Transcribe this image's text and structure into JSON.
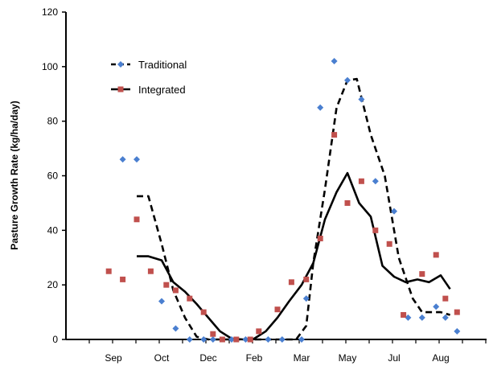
{
  "chart_data": {
    "type": "scatter",
    "title": "",
    "xlabel": "",
    "ylabel": "Pasture Growth Rate (kg/ha/day)",
    "ylim": [
      0,
      120
    ],
    "yticks": [
      0,
      20,
      40,
      60,
      80,
      100,
      120
    ],
    "xlim": [
      0,
      12
    ],
    "xtick_labels": [
      {
        "label": "Sep",
        "x": 1
      },
      {
        "label": "Oct",
        "x": 2
      },
      {
        "label": "Dec",
        "x": 3
      },
      {
        "label": "Feb",
        "x": 4
      },
      {
        "label": "Mar",
        "x": 5
      },
      {
        "label": "May",
        "x": 6
      },
      {
        "label": "Jul",
        "x": 7
      },
      {
        "label": "Aug",
        "x": 8
      }
    ],
    "grid": false,
    "legend_position": "top-left",
    "series": [
      {
        "name": "Traditional",
        "marker": "diamond",
        "color": "#4a7fd0",
        "points": [
          [
            1.2,
            66
          ],
          [
            1.5,
            66
          ],
          [
            2.0,
            14
          ],
          [
            2.3,
            4
          ],
          [
            2.6,
            0
          ],
          [
            2.9,
            0
          ],
          [
            3.1,
            0
          ],
          [
            3.5,
            0
          ],
          [
            3.8,
            0
          ],
          [
            4.3,
            0
          ],
          [
            4.6,
            0
          ],
          [
            5.0,
            0
          ],
          [
            5.1,
            15
          ],
          [
            5.4,
            85
          ],
          [
            5.7,
            102
          ],
          [
            6.0,
            95
          ],
          [
            6.3,
            88
          ],
          [
            6.6,
            58
          ],
          [
            7.0,
            47
          ],
          [
            7.3,
            8
          ],
          [
            7.6,
            8
          ],
          [
            7.9,
            12
          ],
          [
            8.1,
            8
          ],
          [
            8.35,
            3
          ]
        ]
      },
      {
        "name": "Integrated",
        "marker": "square",
        "color": "#c0504d",
        "points": [
          [
            0.9,
            25
          ],
          [
            1.2,
            22
          ],
          [
            1.5,
            44
          ],
          [
            1.8,
            25
          ],
          [
            2.1,
            20
          ],
          [
            2.3,
            18
          ],
          [
            2.6,
            15
          ],
          [
            2.9,
            10
          ],
          [
            3.1,
            2
          ],
          [
            3.3,
            0
          ],
          [
            3.6,
            0
          ],
          [
            3.9,
            0
          ],
          [
            4.1,
            3
          ],
          [
            4.5,
            11
          ],
          [
            4.8,
            21
          ],
          [
            5.1,
            22
          ],
          [
            5.4,
            37
          ],
          [
            5.7,
            75
          ],
          [
            6.0,
            50
          ],
          [
            6.3,
            58
          ],
          [
            6.6,
            40
          ],
          [
            6.9,
            35
          ],
          [
            7.2,
            9
          ],
          [
            7.6,
            24
          ],
          [
            7.9,
            31
          ],
          [
            8.1,
            15
          ],
          [
            8.35,
            10
          ]
        ]
      }
    ],
    "trend_lines": [
      {
        "series": "Traditional",
        "style": "dashed",
        "points": [
          [
            1.5,
            52.5
          ],
          [
            1.75,
            52.5
          ],
          [
            2.0,
            35
          ],
          [
            2.25,
            18
          ],
          [
            2.5,
            8
          ],
          [
            2.75,
            1
          ],
          [
            3.0,
            0
          ],
          [
            3.5,
            0
          ],
          [
            4.0,
            0
          ],
          [
            4.5,
            0
          ],
          [
            4.9,
            0
          ],
          [
            5.1,
            5
          ],
          [
            5.25,
            28
          ],
          [
            5.5,
            55
          ],
          [
            5.75,
            85
          ],
          [
            6.0,
            95
          ],
          [
            6.2,
            95.5
          ],
          [
            6.5,
            75
          ],
          [
            6.8,
            60
          ],
          [
            7.1,
            30
          ],
          [
            7.4,
            15
          ],
          [
            7.6,
            10
          ],
          [
            7.8,
            10
          ],
          [
            8.0,
            10
          ],
          [
            8.2,
            9
          ]
        ]
      },
      {
        "series": "Integrated",
        "style": "solid",
        "points": [
          [
            1.5,
            30.5
          ],
          [
            1.75,
            30.5
          ],
          [
            2.0,
            29
          ],
          [
            2.25,
            21
          ],
          [
            2.5,
            17.5
          ],
          [
            2.75,
            13
          ],
          [
            3.0,
            8
          ],
          [
            3.25,
            3
          ],
          [
            3.5,
            0.3
          ],
          [
            3.75,
            0
          ],
          [
            4.0,
            0.3
          ],
          [
            4.25,
            3
          ],
          [
            4.5,
            8
          ],
          [
            4.75,
            14
          ],
          [
            5.0,
            20
          ],
          [
            5.25,
            28
          ],
          [
            5.5,
            44
          ],
          [
            5.75,
            54
          ],
          [
            6.0,
            61
          ],
          [
            6.25,
            50
          ],
          [
            6.5,
            45
          ],
          [
            6.75,
            27
          ],
          [
            7.0,
            23
          ],
          [
            7.25,
            21
          ],
          [
            7.5,
            22
          ],
          [
            7.75,
            21
          ],
          [
            8.0,
            23.5
          ],
          [
            8.2,
            18.5
          ]
        ]
      }
    ]
  }
}
